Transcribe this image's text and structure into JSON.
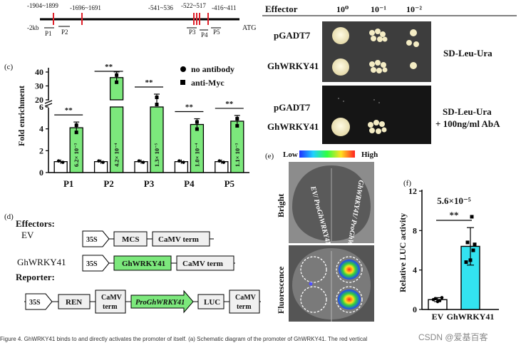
{
  "promoter_map": {
    "label_2kb": "-2kb",
    "label_atg": "ATG",
    "sites": [
      "-1904~1899",
      "-1696~1691",
      "-541~536",
      "-522~517",
      "-416~411"
    ],
    "primers": [
      "P1",
      "P2",
      "P3",
      "P4",
      "P5"
    ]
  },
  "y1h": {
    "header": "Effector",
    "dilutions": [
      "10⁰",
      "10⁻¹",
      "10⁻²"
    ],
    "rows_a": [
      "pGADT7",
      "GhWRKY41"
    ],
    "rows_b": [
      "pGADT7",
      "GhWRKY41"
    ],
    "medium_a": "SD-Leu-Ura",
    "medium_b_line1": "SD-Leu-Ura",
    "medium_b_line2": "+ 100ng/ml AbA"
  },
  "chip": {
    "panel": "(c)",
    "ylabel": "Fold enrichment",
    "legend": [
      "no antibody",
      "anti-Myc"
    ],
    "sig": "**",
    "pvalues": [
      "6.2× 10⁻³",
      "4.2× 10⁻⁴",
      "1.3× 10⁻⁵",
      "1.0× 10⁻⁴",
      "1.1× 10⁻³"
    ]
  },
  "chart_data": [
    {
      "type": "bar",
      "categories": [
        "P1",
        "P2",
        "P3",
        "P4",
        "P5"
      ],
      "series": [
        {
          "name": "no antibody",
          "values": [
            1.0,
            1.0,
            1.0,
            1.0,
            1.0
          ]
        },
        {
          "name": "anti-Myc",
          "values": [
            4.1,
            36.0,
            12.0,
            4.4,
            4.7
          ]
        }
      ],
      "ylabel": "Fold enrichment",
      "yticks": [
        0,
        2,
        4,
        6,
        20,
        30,
        40
      ],
      "broken_axis": true,
      "colors": {
        "no antibody": "#ffffff",
        "anti-Myc": "#7ce87c"
      }
    },
    {
      "type": "bar",
      "categories": [
        "EV",
        "GhWRKY41"
      ],
      "values": [
        1.0,
        6.4
      ],
      "errors": [
        0.2,
        1.9
      ],
      "ylabel": "Relative LUC activity",
      "yticks": [
        0,
        4,
        8,
        12
      ],
      "ylim": [
        0,
        12
      ],
      "pvalue": "5.6×10⁻⁵",
      "sig": "**",
      "colors": {
        "EV": "#ffffff",
        "GhWRKY41": "#33e3f0"
      }
    }
  ],
  "constructs": {
    "panel": "(d)",
    "effectors_title": "Effectors:",
    "reporter_title": "Reporter:",
    "ev_label": "EV",
    "wrky_label": "GhWRKY41",
    "p35s": "35S",
    "mcs": "MCS",
    "camv": "CaMV term",
    "gene": "GhWRKY41",
    "ren": "REN",
    "camv_l1": "CaMV",
    "camv_l2": "term",
    "pro": "ProGhWRKY41",
    "luc": "LUC"
  },
  "luc_image": {
    "panel": "(e)",
    "low": "Low",
    "high": "High",
    "bright": "Bright",
    "fluorescence": "Fluorescence",
    "ev_label": "EV/ ProGhWRKY41",
    "wrky_label": "GhWRKY41/ ProGhWRKY41"
  },
  "luc_chart": {
    "panel": "(f)",
    "ylabel": "Relative LUC activity"
  },
  "footer": {
    "caption": "Figure 4. GhWRKY41 binds to and directly activates the promoter of itself. (a) Schematic diagram of the promoter of GhWRKY41. The red vertical",
    "watermark": "CSDN @爱基百客"
  },
  "colors": {
    "green": "#7ce87c",
    "cyan": "#33e3f0",
    "site_red": "#e0202a",
    "gray_box": "#f0f0f0"
  }
}
